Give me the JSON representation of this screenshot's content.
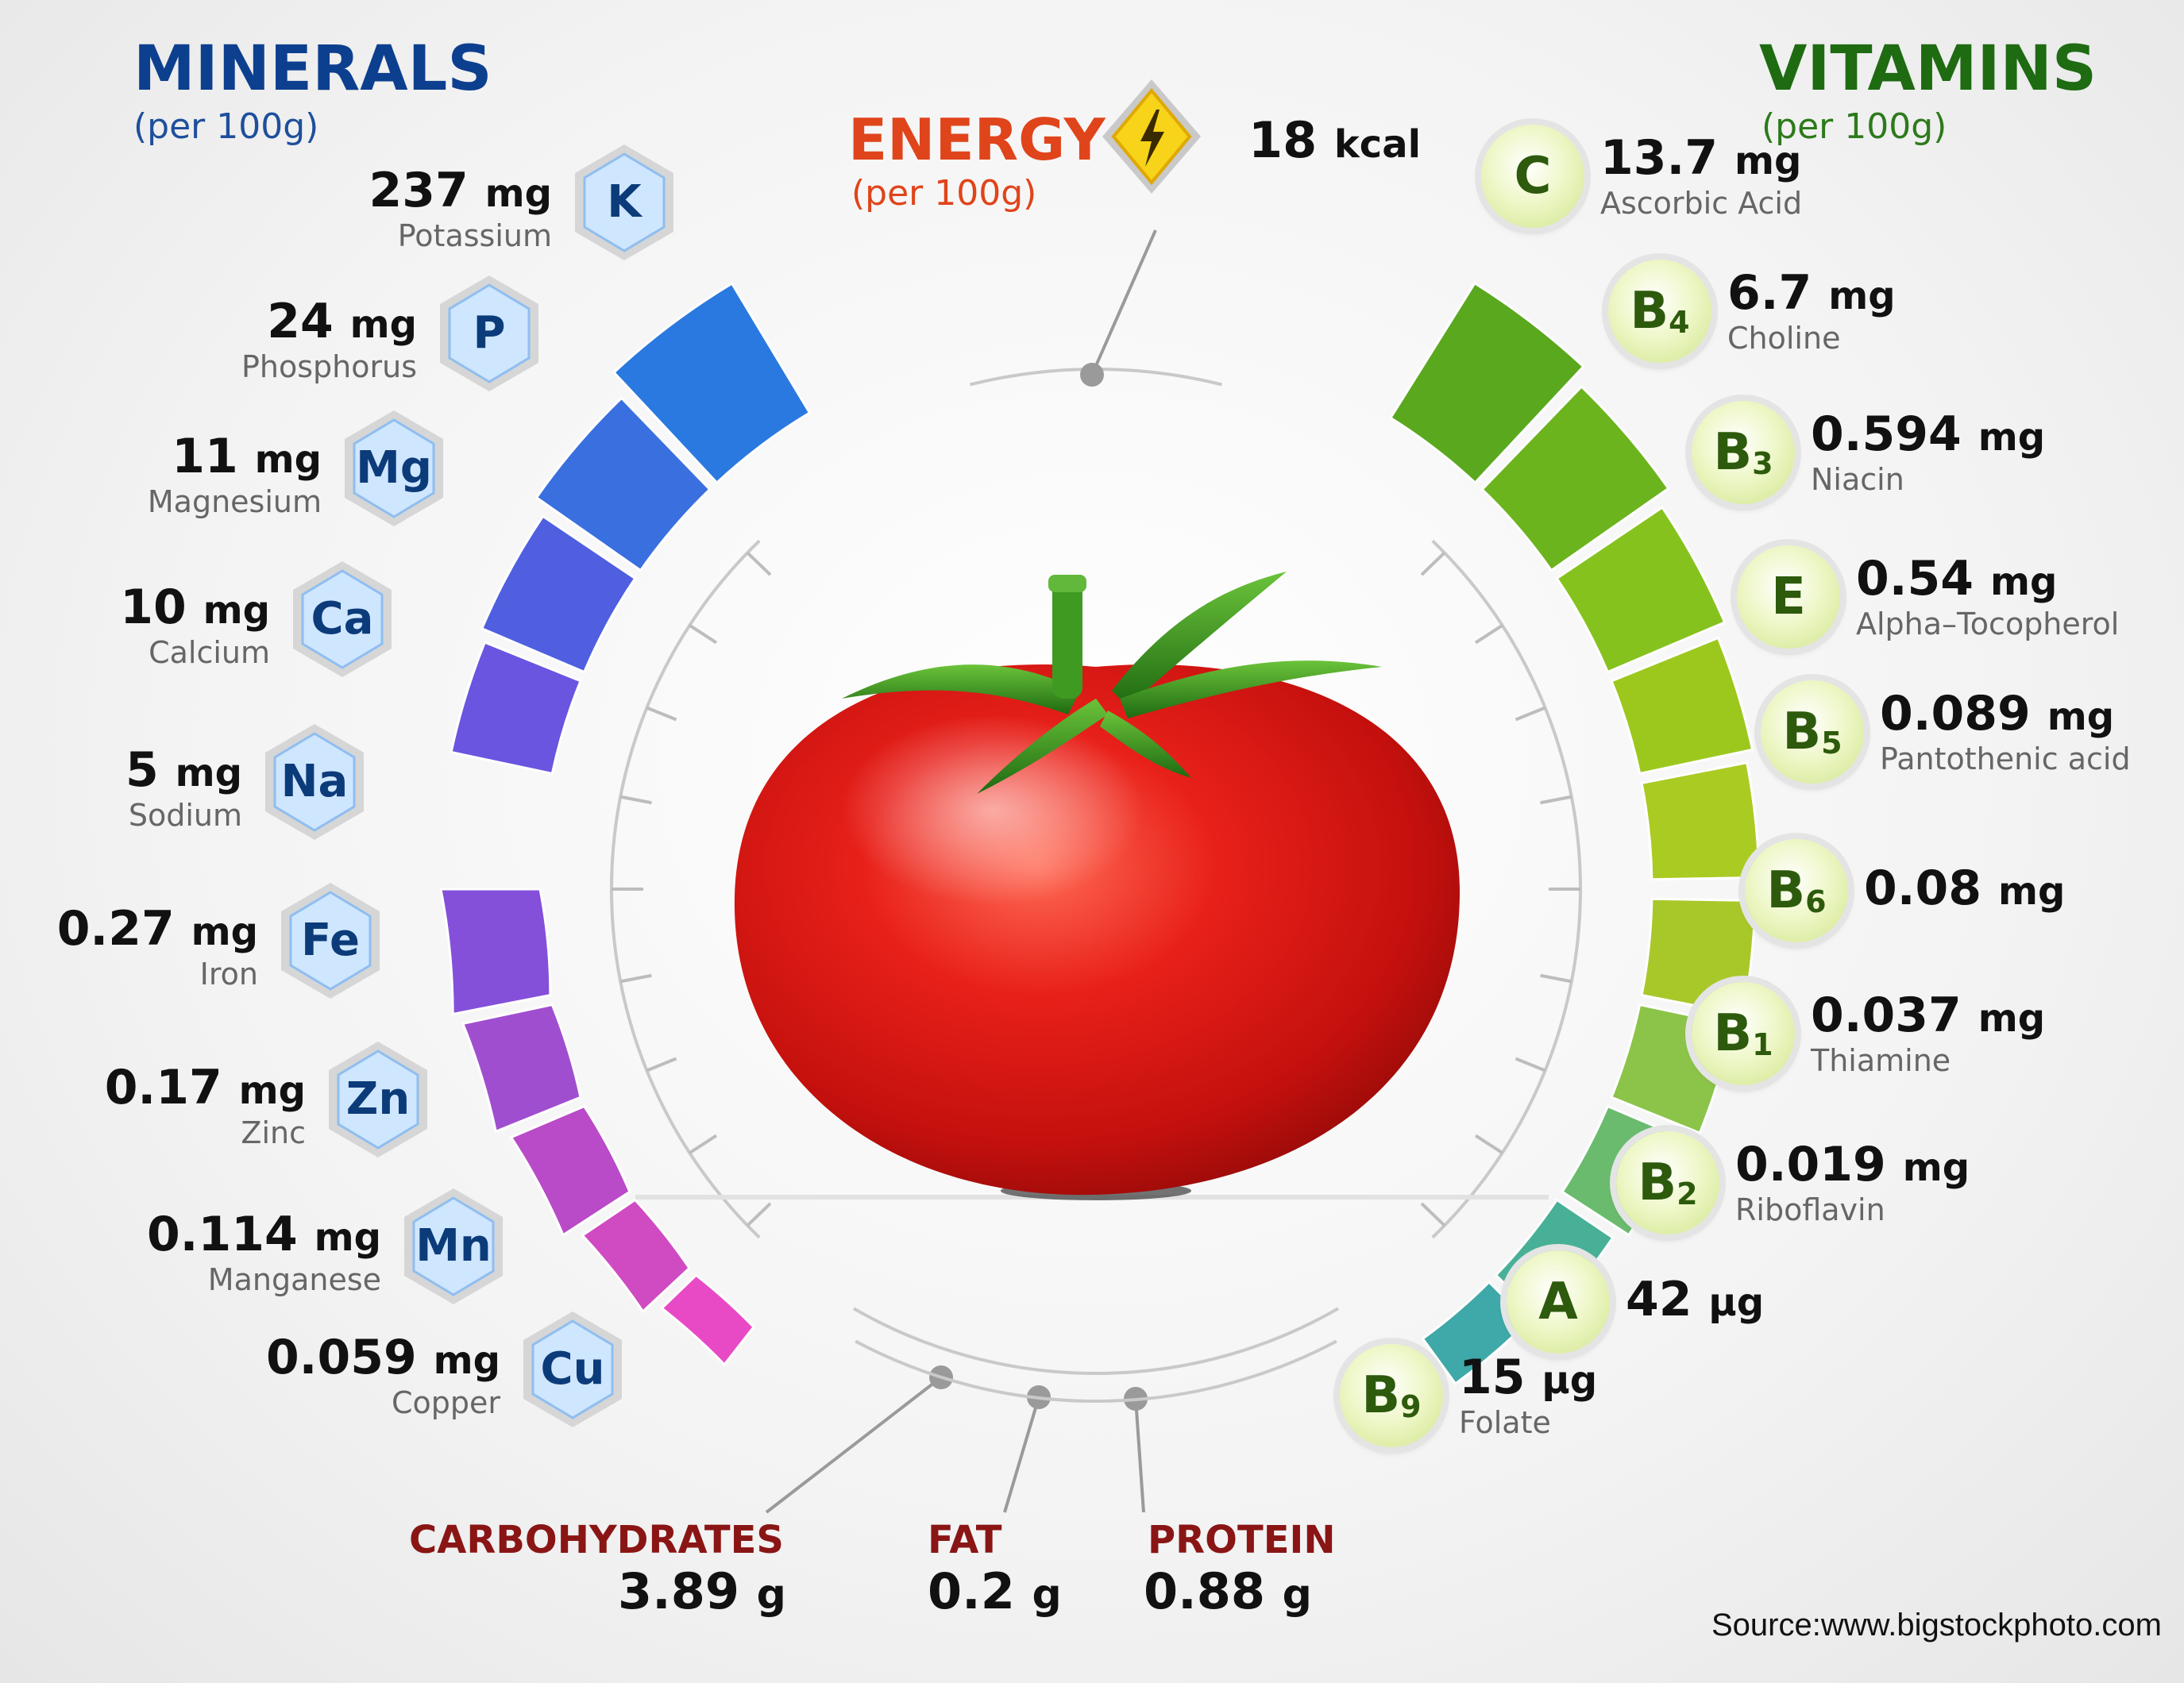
{
  "minerals": {
    "title": "MINERALS",
    "subtitle": "(per 100g)",
    "items": [
      {
        "symbol": "K",
        "value": "237",
        "unit": "mg",
        "name": "Potassium"
      },
      {
        "symbol": "P",
        "value": "24",
        "unit": "mg",
        "name": "Phosphorus"
      },
      {
        "symbol": "Mg",
        "value": "11",
        "unit": "mg",
        "name": "Magnesium"
      },
      {
        "symbol": "Ca",
        "value": "10",
        "unit": "mg",
        "name": "Calcium"
      },
      {
        "symbol": "Na",
        "value": "5",
        "unit": "mg",
        "name": "Sodium"
      },
      {
        "symbol": "Fe",
        "value": "0.27",
        "unit": "mg",
        "name": "Iron"
      },
      {
        "symbol": "Zn",
        "value": "0.17",
        "unit": "mg",
        "name": "Zinc"
      },
      {
        "symbol": "Mn",
        "value": "0.114",
        "unit": "mg",
        "name": "Manganese"
      },
      {
        "symbol": "Cu",
        "value": "0.059",
        "unit": "mg",
        "name": "Copper"
      }
    ]
  },
  "vitamins": {
    "title": "VITAMINS",
    "subtitle": "(per 100g)",
    "items": [
      {
        "symbol": "C",
        "sub": "",
        "value": "13.7",
        "unit": "mg",
        "name": "Ascorbic Acid"
      },
      {
        "symbol": "B",
        "sub": "4",
        "value": "6.7",
        "unit": "mg",
        "name": "Choline"
      },
      {
        "symbol": "B",
        "sub": "3",
        "value": "0.594",
        "unit": "mg",
        "name": "Niacin"
      },
      {
        "symbol": "E",
        "sub": "",
        "value": "0.54",
        "unit": "mg",
        "name": "Alpha–Tocopherol"
      },
      {
        "symbol": "B",
        "sub": "5",
        "value": "0.089",
        "unit": "mg",
        "name": "Pantothenic acid"
      },
      {
        "symbol": "B",
        "sub": "6",
        "value": "0.08",
        "unit": "mg",
        "name": ""
      },
      {
        "symbol": "B",
        "sub": "1",
        "value": "0.037",
        "unit": "mg",
        "name": "Thiamine"
      },
      {
        "symbol": "B",
        "sub": "2",
        "value": "0.019",
        "unit": "mg",
        "name": "Riboflavin"
      },
      {
        "symbol": "A",
        "sub": "",
        "value": "42",
        "unit": "µg",
        "name": ""
      },
      {
        "symbol": "B",
        "sub": "9",
        "value": "15",
        "unit": "µg",
        "name": "Folate"
      }
    ]
  },
  "energy": {
    "title": "ENERGY",
    "subtitle": "(per 100g)",
    "value": "18",
    "unit": "kcal",
    "icon": "lightning-icon"
  },
  "macros": [
    {
      "label": "CARBOHYDRATES",
      "value": "3.89",
      "unit": "g"
    },
    {
      "label": "FAT",
      "value": "0.2",
      "unit": "g"
    },
    {
      "label": "PROTEIN",
      "value": "0.88",
      "unit": "g"
    }
  ],
  "source": "Source:www.bigstockphoto.com",
  "colors": {
    "minerals_title": "#0d3f8f",
    "vitamins_title": "#1e6b12",
    "energy_title": "#e0441b",
    "macro_label": "#8a1515"
  }
}
